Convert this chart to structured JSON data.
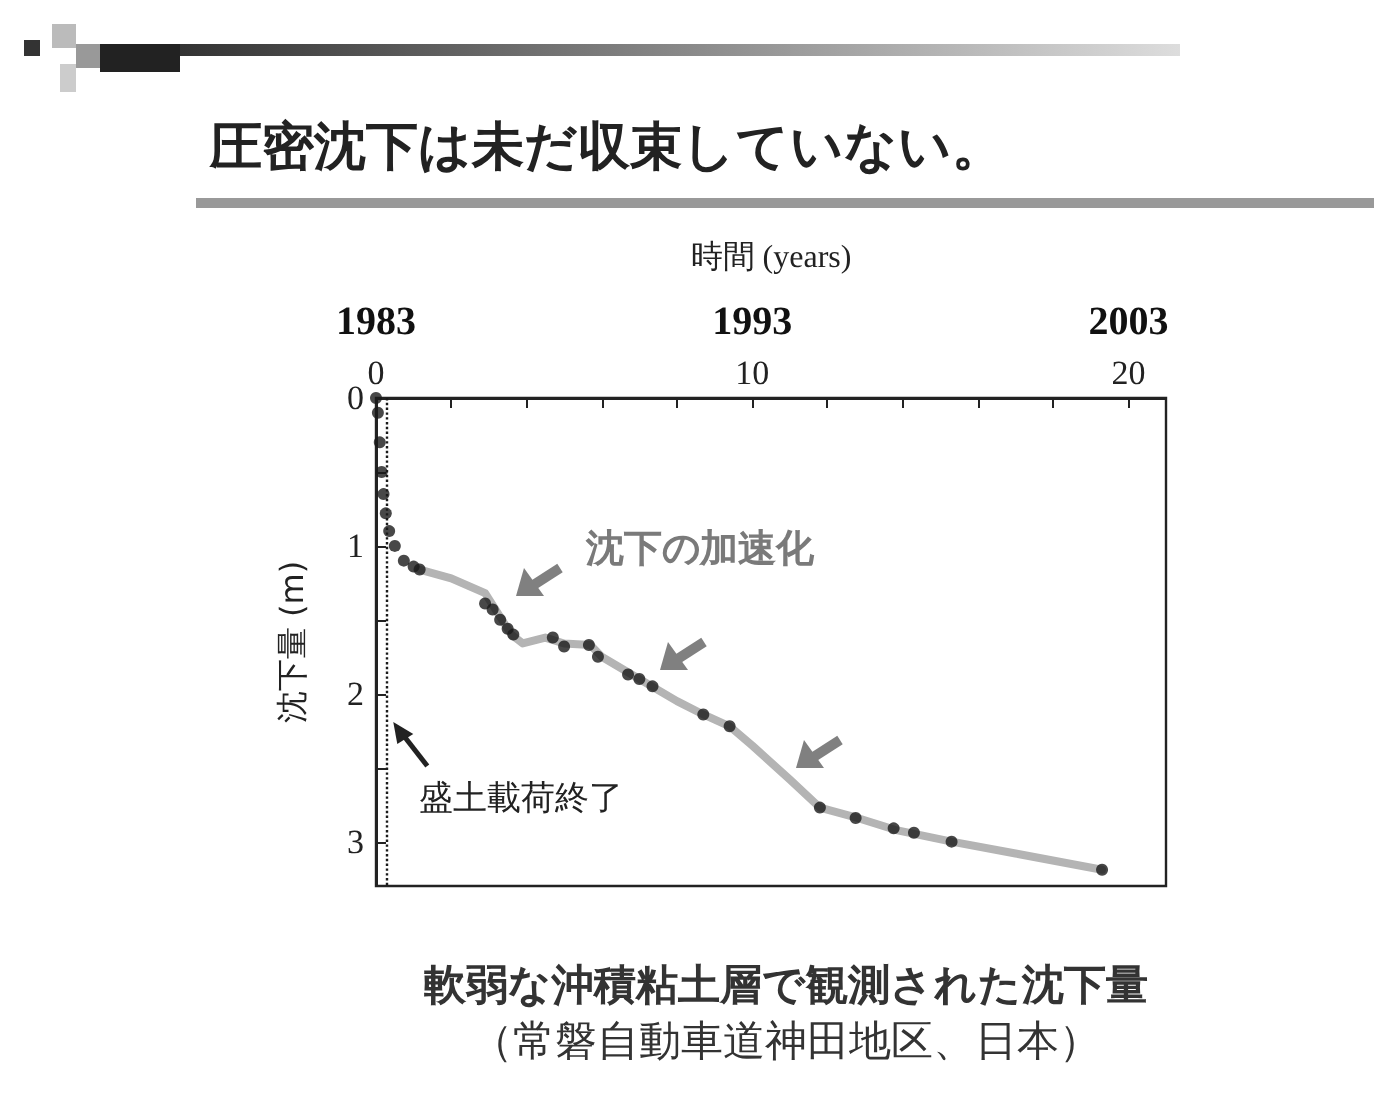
{
  "chart_data": {
    "type": "line",
    "title": "圧密沈下は未だ収束していない。",
    "xlabel": "時間 (years)",
    "ylabel": "沈下量 (m)",
    "xlim": [
      0,
      21
    ],
    "xticks": [
      0,
      {
        "value": 2,
        "label": null
      },
      {
        "value": 4,
        "label": null
      },
      {
        "value": 6,
        "label": null
      },
      {
        "value": 8,
        "label": null
      },
      10,
      {
        "value": 12,
        "label": null
      },
      {
        "value": 14,
        "label": null
      },
      {
        "value": 16,
        "label": null
      },
      {
        "value": 18,
        "label": null
      },
      20
    ],
    "x2lim": [
      1983,
      2004
    ],
    "x2ticks": [
      1983,
      1993,
      2003
    ],
    "ylim": [
      3.3,
      0
    ],
    "yticks": [
      0,
      {
        "value": 0.5,
        "label": null
      },
      1,
      {
        "value": 1.5,
        "label": null
      },
      2,
      {
        "value": 2.5,
        "label": null
      },
      3
    ],
    "grid": false,
    "series": [
      {
        "color": "#b4b4b4",
        "marker": "none",
        "x": [
          1.16,
          2,
          2.9,
          3.6,
          3.9,
          4.5,
          5.0,
          5.7,
          6.0,
          7.0,
          8.0,
          8.7,
          9.4,
          10,
          11,
          11.8,
          12.8,
          13.8,
          15.3,
          17,
          19.3
        ],
        "values": [
          1.16,
          1.22,
          1.32,
          1.6,
          1.66,
          1.62,
          1.66,
          1.67,
          1.75,
          1.9,
          2.05,
          2.14,
          2.22,
          2.35,
          2.58,
          2.77,
          2.84,
          2.92,
          3.0,
          3.08,
          3.19
        ]
      },
      {
        "type": "scatter",
        "color": "#1a1a1a",
        "marker": "circle",
        "x": [
          0,
          0.05,
          0.1,
          0.15,
          0.2,
          0.26,
          0.35,
          0.5,
          0.74,
          1.0,
          1.16,
          2.9,
          3.1,
          3.3,
          3.5,
          3.65,
          4.7,
          5.0,
          5.66,
          5.9,
          6.7,
          7.0,
          7.35,
          8.7,
          9.4,
          11.8,
          12.75,
          13.76,
          14.3,
          15.3,
          19.3
        ],
        "values": [
          0,
          0.1,
          0.3,
          0.5,
          0.65,
          0.78,
          0.9,
          1.0,
          1.1,
          1.14,
          1.16,
          1.39,
          1.43,
          1.5,
          1.56,
          1.6,
          1.62,
          1.68,
          1.67,
          1.75,
          1.87,
          1.9,
          1.95,
          2.14,
          2.22,
          2.77,
          2.84,
          2.91,
          2.94,
          3.0,
          3.19
        ]
      }
    ],
    "ref_lines": [
      {
        "axis": "x",
        "value": 0.3,
        "label": "盛土載荷終了",
        "color": "#1a1a1a",
        "line_style": "dotted"
      }
    ],
    "annotations": [
      "沈下の加速化",
      "軟弱な沖積粘土層で観測された沈下量",
      "（常磐自動車道神田地区、日本）"
    ]
  }
}
